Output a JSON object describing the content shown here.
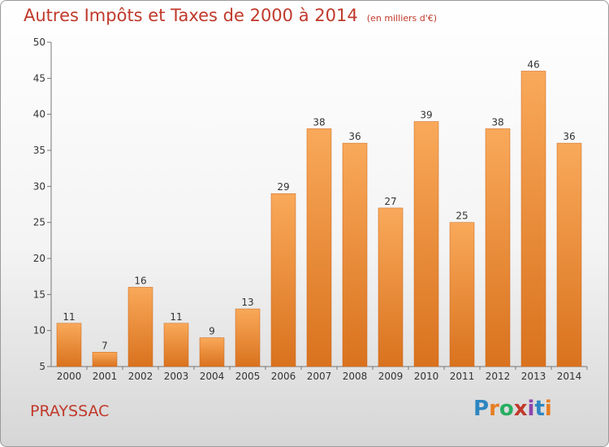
{
  "chart_data": {
    "type": "bar",
    "title": "Autres Impôts et Taxes de 2000 à 2014",
    "unit_label": "(en milliers d'€)",
    "categories": [
      "2000",
      "2001",
      "2002",
      "2003",
      "2004",
      "2005",
      "2006",
      "2007",
      "2008",
      "2009",
      "2010",
      "2011",
      "2012",
      "2013",
      "2014"
    ],
    "values": [
      11,
      7,
      16,
      11,
      9,
      13,
      29,
      38,
      36,
      27,
      39,
      25,
      38,
      46,
      36
    ],
    "ylim": [
      5,
      50
    ],
    "yticks": [
      5,
      10,
      15,
      20,
      25,
      30,
      35,
      40,
      45,
      50
    ],
    "grid": false,
    "bar_color": "#f0903a"
  },
  "commune": "PRAYSSAC",
  "logo": {
    "letters": [
      "P",
      "r",
      "o",
      "x",
      "i",
      "t",
      "i"
    ],
    "colors": [
      "#2e86c1",
      "#e67e22",
      "#27ae60",
      "#c0392b",
      "#8e44ad",
      "#2e86c1",
      "#e67e22"
    ]
  }
}
